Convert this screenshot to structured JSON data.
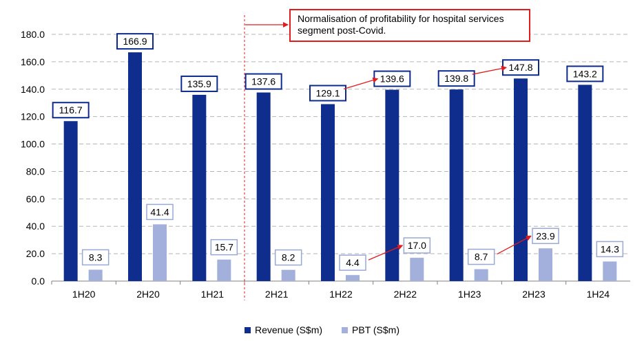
{
  "chart_data": {
    "type": "bar",
    "categories": [
      "1H20",
      "2H20",
      "1H21",
      "2H21",
      "1H22",
      "2H22",
      "1H23",
      "2H23",
      "1H24"
    ],
    "series": [
      {
        "name": "Revenue (S$m)",
        "values": [
          116.7,
          166.9,
          135.9,
          137.6,
          129.1,
          139.6,
          139.8,
          147.8,
          143.2
        ],
        "color": "#0f2d8c"
      },
      {
        "name": "PBT (S$m)",
        "values": [
          8.3,
          41.4,
          15.7,
          8.2,
          4.4,
          17.0,
          8.7,
          23.9,
          14.3
        ],
        "color": "#a3b0dc"
      }
    ],
    "data_labels": {
      "revenue": [
        "116.7",
        "166.9",
        "135.9",
        "137.6",
        "129.1",
        "139.6",
        "139.8",
        "147.8",
        "143.2"
      ],
      "pbt": [
        "8.3",
        "41.4",
        "15.7",
        "8.2",
        "4.4",
        "17.0",
        "8.7",
        "23.9",
        "14.3"
      ]
    },
    "y_ticks": [
      "0.0",
      "20.0",
      "40.0",
      "60.0",
      "80.0",
      "100.0",
      "120.0",
      "140.0",
      "160.0",
      "180.0"
    ],
    "ylim": [
      0,
      180
    ],
    "grid": true,
    "legend_position": "bottom",
    "annotation": "Normalisation of profitability for hospital services segment post-Covid.",
    "divider_after_category": "1H21",
    "annotation_color": "#e31b1b"
  }
}
